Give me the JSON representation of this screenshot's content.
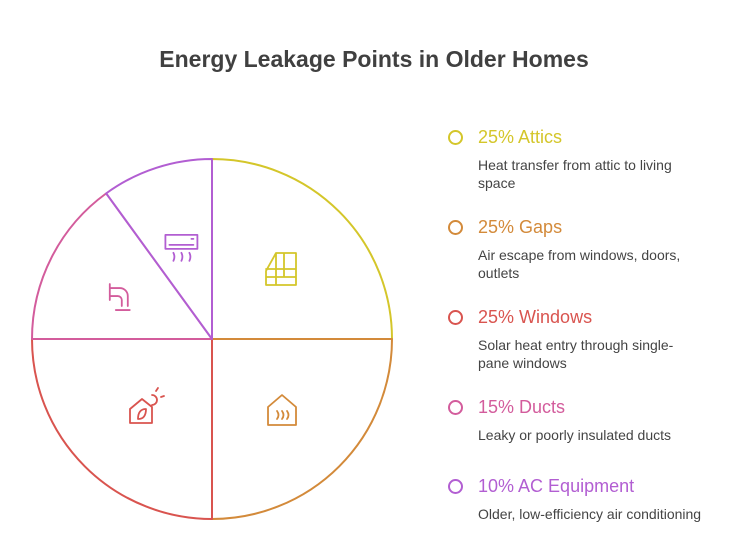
{
  "chart_data": {
    "type": "pie",
    "title": "Energy Leakage Points in Older Homes",
    "categories": [
      "Attics",
      "Gaps",
      "Windows",
      "Ducts",
      "AC Equipment"
    ],
    "values": [
      25,
      25,
      25,
      15,
      10
    ],
    "value_labels": [
      "25%",
      "25%",
      "25%",
      "15%",
      "10%"
    ],
    "colors": [
      "#d4c62a",
      "#d38a3a",
      "#d9544f",
      "#d35c9c",
      "#b25ed2"
    ],
    "descriptions": [
      "Heat transfer from attic to living space",
      "Air escape from windows, doors, outlets",
      "Solar heat entry through single-pane windows",
      "Leaky or poorly insulated ducts",
      "Older, low-efficiency air conditioning"
    ]
  }
}
